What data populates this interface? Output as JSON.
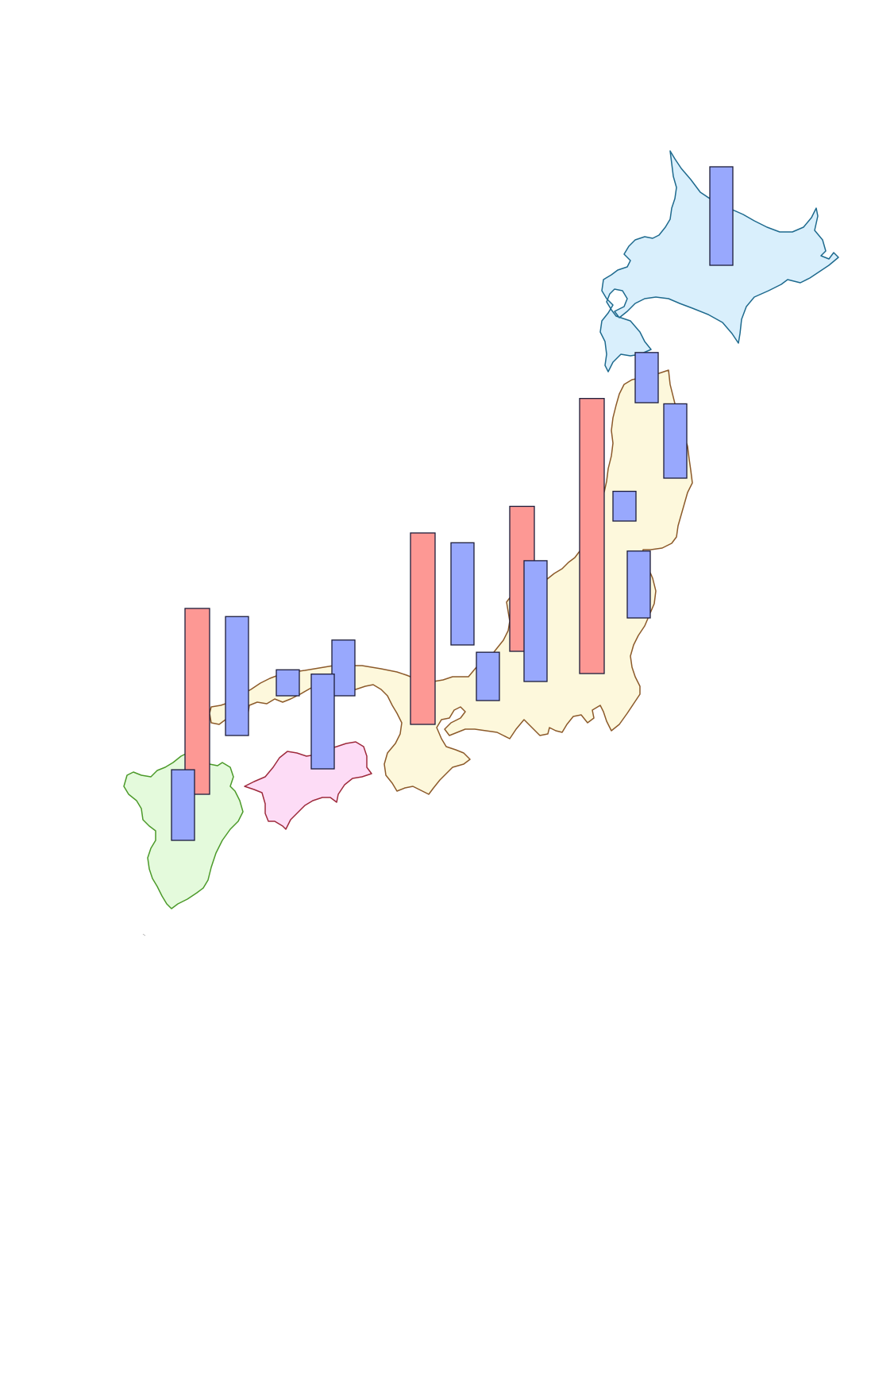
{
  "map": {
    "regions": [
      {
        "name": "hokkaido",
        "fill": "#d9effc",
        "stroke": "#1e6a8e"
      },
      {
        "name": "honshu",
        "fill": "#fdf8dc",
        "stroke": "#8c5a2a"
      },
      {
        "name": "shikoku",
        "fill": "#fddcf6",
        "stroke": "#9e2a3c"
      },
      {
        "name": "kyushu",
        "fill": "#e4fadc",
        "stroke": "#4c9a2a"
      }
    ]
  },
  "series_colors": {
    "red": "#fd9894",
    "blue": "#98a8fd"
  },
  "chart_data": {
    "type": "bar",
    "description_free": true,
    "bars": [
      {
        "color": "red",
        "location": "kyushu-north",
        "value": 1.0
      },
      {
        "color": "blue",
        "location": "kyushu-west",
        "value": 0.38
      },
      {
        "color": "blue",
        "location": "yamaguchi",
        "value": 0.64
      },
      {
        "color": "blue",
        "location": "shimane",
        "value": 0.14
      },
      {
        "color": "blue",
        "location": "tottori",
        "value": 0.3
      },
      {
        "color": "blue",
        "location": "okayama-kagawa",
        "value": 0.51
      },
      {
        "color": "red",
        "location": "kansai",
        "value": 1.03
      },
      {
        "color": "blue",
        "location": "fukui",
        "value": 0.55
      },
      {
        "color": "blue",
        "location": "aichi",
        "value": 0.26
      },
      {
        "color": "red",
        "location": "niigata",
        "value": 0.78
      },
      {
        "color": "blue",
        "location": "nagano",
        "value": 0.65
      },
      {
        "color": "red",
        "location": "kanto",
        "value": 1.48
      },
      {
        "color": "blue",
        "location": "miyagi-yamagata",
        "value": 0.16
      },
      {
        "color": "blue",
        "location": "fukushima",
        "value": 0.36
      },
      {
        "color": "blue",
        "location": "aomori",
        "value": 0.27
      },
      {
        "color": "blue",
        "location": "iwate",
        "value": 0.4
      },
      {
        "color": "blue",
        "location": "hokkaido",
        "value": 0.53
      }
    ]
  }
}
